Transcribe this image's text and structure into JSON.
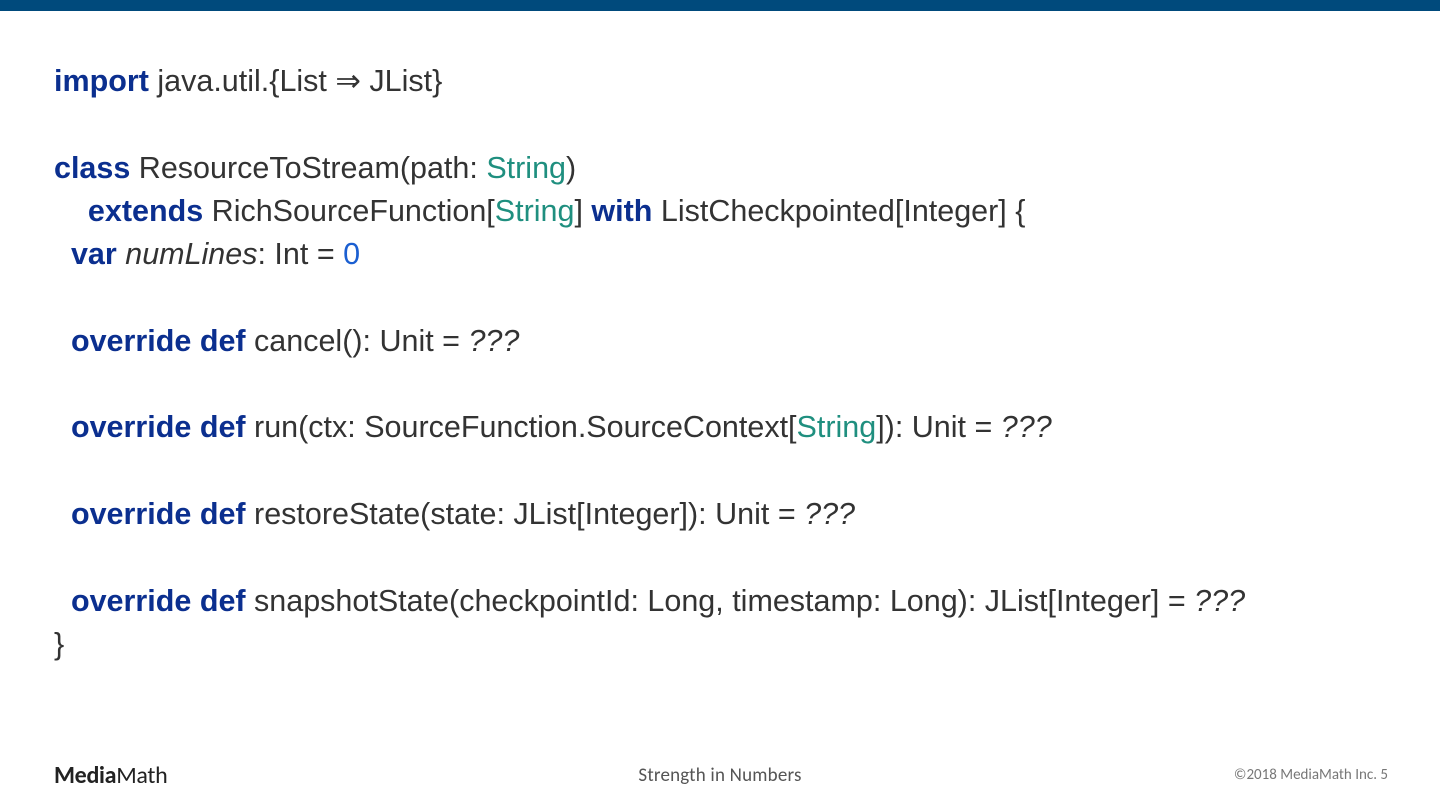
{
  "colors": {
    "top_bar": "#004a7c",
    "background": "#ffffff",
    "keyword": "#0b2f8f",
    "type_string": "#1f8f7f",
    "number": "#1b5fd1",
    "code_text": "#333333",
    "footer_logo": "#222222",
    "footer_tagline": "#555555",
    "footer_copyright": "#777777"
  },
  "fontsizes": {
    "code": 30.5,
    "logo": 24,
    "tagline": 19,
    "copyright": 15
  },
  "t": {
    "import": "import",
    "import_rest": " java.util.{List ⇒ JList}",
    "class": "class",
    "class_rest1": " ResourceToStream(path: ",
    "String1": "String",
    "class_rest2": ")",
    "extends_indent": "    ",
    "extends": "extends",
    "extends_rest1": " RichSourceFunction[",
    "String2": "String",
    "extends_rest2": "] ",
    "with": "with",
    "extends_rest3": " ListCheckpointed[Integer] {",
    "var_indent": "  ",
    "var": "var",
    "var_sp": " ",
    "numLines": "numLines",
    "var_rest": ": Int = ",
    "zero": "0",
    "od_indent": "  ",
    "override": "override",
    "sp": " ",
    "def": "def",
    "cancel_rest": " cancel(): Unit = ",
    "qqq1": "???",
    "run_rest1": " run(ctx: SourceFunction.SourceContext[",
    "String3": "String",
    "run_rest2": "]): Unit = ",
    "qqq2": "???",
    "restore_rest": " restoreState(state: JList[Integer]): Unit = ",
    "qqq3": "???",
    "snapshot_rest": " snapshotState(checkpointId: Long, timestamp: Long): JList[Integer] = ",
    "qqq4": "???",
    "close": "}"
  },
  "footer": {
    "logo_a": "Media",
    "logo_b": "Math",
    "tagline": "Strength in Numbers",
    "copyright": "©2018 MediaMath Inc.  5"
  }
}
